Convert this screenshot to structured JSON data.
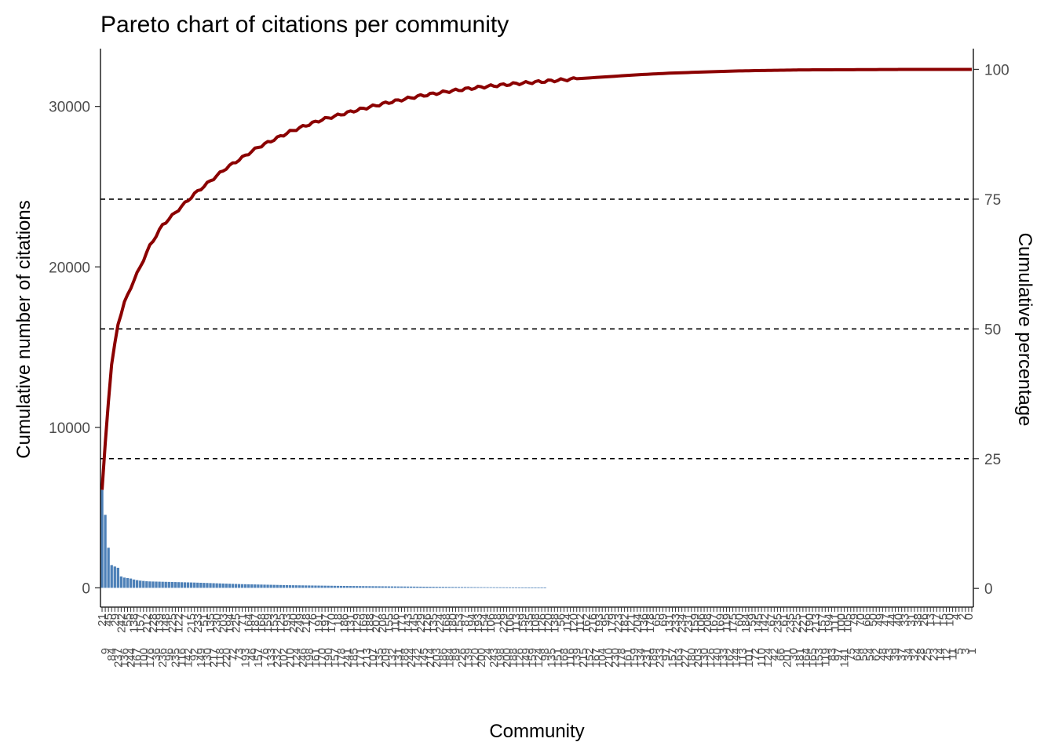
{
  "chart_data": {
    "type": "bar",
    "title": "Pareto chart of citations per community",
    "xlabel": "Community",
    "ylabel": "Cumulative number of citations",
    "y2label": "Cumulative percentage",
    "ylim": [
      -1200,
      33600
    ],
    "y2lim": [
      -3.6,
      104
    ],
    "yticks": [
      0,
      10000,
      20000,
      30000
    ],
    "y2ticks": [
      0,
      25,
      50,
      75,
      100
    ],
    "reference_lines_percent": [
      25,
      50,
      75
    ],
    "grid": false,
    "legend": "none",
    "colors": {
      "bars": "#4e81b8",
      "cumulative_line": "#8b0000",
      "reference_lines": "#000000"
    },
    "bar_count_with_value": 140,
    "total_citations": 32400,
    "categories_tick_labels": [
      "21",
      "9",
      "45",
      "84",
      "29",
      "237",
      "242",
      "136",
      "55",
      "244",
      "138",
      "167",
      "157",
      "100",
      "212",
      "176",
      "228",
      "36",
      "139",
      "236",
      "148",
      "96",
      "225",
      "235",
      "122",
      "116",
      "7",
      "142",
      "215",
      "92",
      "233",
      "149",
      "51",
      "130",
      "135",
      "217",
      "230",
      "118",
      "203",
      "220",
      "194",
      "72",
      "225",
      "73",
      "71",
      "193",
      "164",
      "46",
      "187",
      "157",
      "168",
      "76",
      "159",
      "133",
      "153",
      "232",
      "125",
      "102",
      "193",
      "210",
      "240",
      "124",
      "249",
      "246",
      "218",
      "198",
      "76",
      "161",
      "191",
      "170",
      "197",
      "190",
      "170",
      "157",
      "18",
      "178",
      "186",
      "241",
      "131",
      "185",
      "129",
      "171",
      "169",
      "213",
      "188",
      "107",
      "207",
      "135",
      "208",
      "209",
      "155",
      "132",
      "116",
      "131",
      "171",
      "188",
      "143",
      "244",
      "145",
      "142",
      "229",
      "145",
      "126",
      "214",
      "135",
      "203",
      "224",
      "186",
      "168",
      "184",
      "180",
      "89",
      "153",
      "226",
      "87",
      "139",
      "194",
      "120",
      "193",
      "200",
      "154",
      "24",
      "106",
      "243",
      "18",
      "198",
      "229",
      "200",
      "106",
      "188",
      "113",
      "126",
      "159",
      "149",
      "135",
      "159",
      "108",
      "124",
      "126",
      "98",
      "120",
      "135",
      "138",
      "151",
      "56",
      "168",
      "114",
      "116",
      "120",
      "139",
      "112",
      "215",
      "162",
      "152",
      "216",
      "167",
      "193",
      "104",
      "95",
      "210",
      "179",
      "230",
      "223",
      "178",
      "182",
      "161",
      "121",
      "159",
      "204",
      "134",
      "136",
      "231",
      "178",
      "189",
      "65",
      "233",
      "69",
      "97",
      "131",
      "157",
      "233",
      "163",
      "234",
      "227",
      "231",
      "180",
      "159",
      "203",
      "106",
      "130",
      "208",
      "126",
      "167",
      "140",
      "169",
      "133",
      "119",
      "162",
      "175",
      "144",
      "60",
      "113",
      "184",
      "101",
      "59",
      "72",
      "145",
      "110",
      "142",
      "124",
      "67",
      "42",
      "235",
      "66",
      "61",
      "201",
      "235",
      "30",
      "225",
      "181",
      "221",
      "164",
      "190",
      "165",
      "213",
      "153",
      "157",
      "119",
      "194",
      "83",
      "111",
      "97",
      "100",
      "141",
      "105",
      "75",
      "79",
      "64",
      "70",
      "58",
      "66",
      "54",
      "50",
      "62",
      "49",
      "48",
      "47",
      "43",
      "44",
      "39",
      "40",
      "37",
      "33",
      "34",
      "31",
      "32",
      "38",
      "28",
      "26",
      "25",
      "13",
      "23",
      "17",
      "14",
      "15",
      "12",
      "10",
      "11",
      "4",
      "5",
      "2",
      "3",
      "0",
      "1"
    ],
    "bar_values_top15": [
      6100,
      4550,
      2500,
      1420,
      1330,
      1250,
      710,
      640,
      610,
      580,
      520,
      480,
      450,
      430,
      410
    ],
    "bar_tail_profile": [
      {
        "rank": 16,
        "value": 400
      },
      {
        "rank": 30,
        "value": 330
      },
      {
        "rank": 45,
        "value": 230
      },
      {
        "rank": 60,
        "value": 165
      },
      {
        "rank": 75,
        "value": 125
      },
      {
        "rank": 90,
        "value": 95
      },
      {
        "rank": 100,
        "value": 75
      },
      {
        "rank": 110,
        "value": 55
      },
      {
        "rank": 120,
        "value": 40
      },
      {
        "rank": 130,
        "value": 28
      },
      {
        "rank": 140,
        "value": 18
      },
      {
        "rank": 141,
        "value": 0
      },
      {
        "rank": 256,
        "value": 0
      }
    ],
    "cumulative_percent_profile": [
      {
        "rank": 1,
        "percent": 19
      },
      {
        "rank": 2,
        "percent": 28
      },
      {
        "rank": 3,
        "percent": 36
      },
      {
        "rank": 4,
        "percent": 43
      },
      {
        "rank": 5,
        "percent": 47
      },
      {
        "rank": 6,
        "percent": 51
      },
      {
        "rank": 8,
        "percent": 55
      },
      {
        "rank": 10,
        "percent": 58
      },
      {
        "rank": 13,
        "percent": 62
      },
      {
        "rank": 16,
        "percent": 66
      },
      {
        "rank": 20,
        "percent": 70
      },
      {
        "rank": 25,
        "percent": 73
      },
      {
        "rank": 30,
        "percent": 76
      },
      {
        "rank": 35,
        "percent": 78.5
      },
      {
        "rank": 40,
        "percent": 81
      },
      {
        "rank": 45,
        "percent": 83
      },
      {
        "rank": 50,
        "percent": 85
      },
      {
        "rank": 55,
        "percent": 86.5
      },
      {
        "rank": 60,
        "percent": 88
      },
      {
        "rank": 65,
        "percent": 89.2
      },
      {
        "rank": 70,
        "percent": 90.3
      },
      {
        "rank": 80,
        "percent": 92
      },
      {
        "rank": 90,
        "percent": 93.5
      },
      {
        "rank": 100,
        "percent": 94.8
      },
      {
        "rank": 110,
        "percent": 95.8
      },
      {
        "rank": 120,
        "percent": 96.6
      },
      {
        "rank": 130,
        "percent": 97.2
      },
      {
        "rank": 140,
        "percent": 97.7
      },
      {
        "rank": 150,
        "percent": 98.2
      },
      {
        "rank": 160,
        "percent": 98.6
      },
      {
        "rank": 170,
        "percent": 99
      },
      {
        "rank": 180,
        "percent": 99.3
      },
      {
        "rank": 190,
        "percent": 99.5
      },
      {
        "rank": 200,
        "percent": 99.7
      },
      {
        "rank": 220,
        "percent": 99.9
      },
      {
        "rank": 256,
        "percent": 100
      }
    ]
  }
}
